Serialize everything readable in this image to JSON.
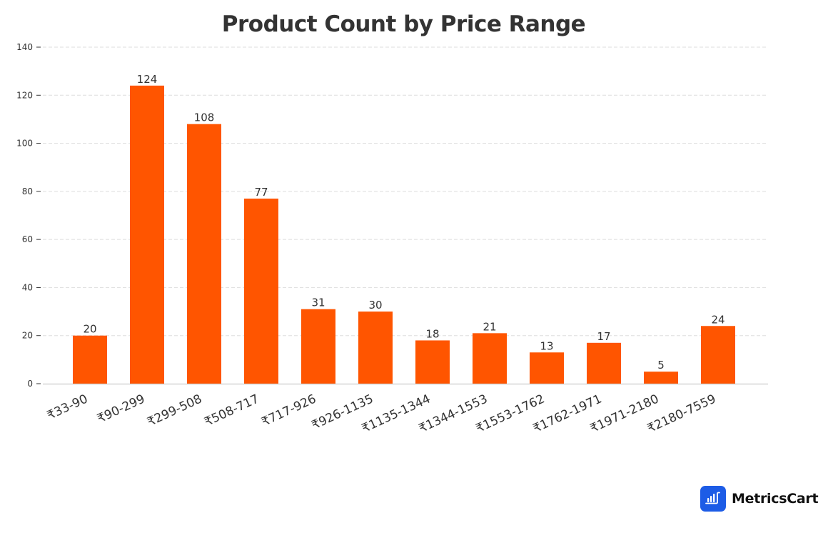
{
  "chart_data": {
    "type": "bar",
    "title": "Product Count by Price Range",
    "xlabel": "",
    "ylabel": "",
    "categories": [
      "₹33-90",
      "₹90-299",
      "₹299-508",
      "₹508-717",
      "₹717-926",
      "₹926-1135",
      "₹1135-1344",
      "₹1344-1553",
      "₹1553-1762",
      "₹1762-1971",
      "₹1971-2180",
      "₹2180-7559"
    ],
    "values": [
      20,
      124,
      108,
      77,
      31,
      30,
      18,
      21,
      13,
      17,
      5,
      24
    ],
    "ylim": [
      0,
      140
    ],
    "yticks": [
      0,
      20,
      40,
      60,
      80,
      100,
      120,
      140
    ],
    "grid": true,
    "grid_style": "dashed horizontal",
    "data_labels": true,
    "legend": null,
    "bar_color": "#ff5500"
  },
  "brand": {
    "name": "MetricsCart",
    "logo_icon": "bar-chart-cart-icon",
    "logo_color": "#1d5ce6"
  }
}
